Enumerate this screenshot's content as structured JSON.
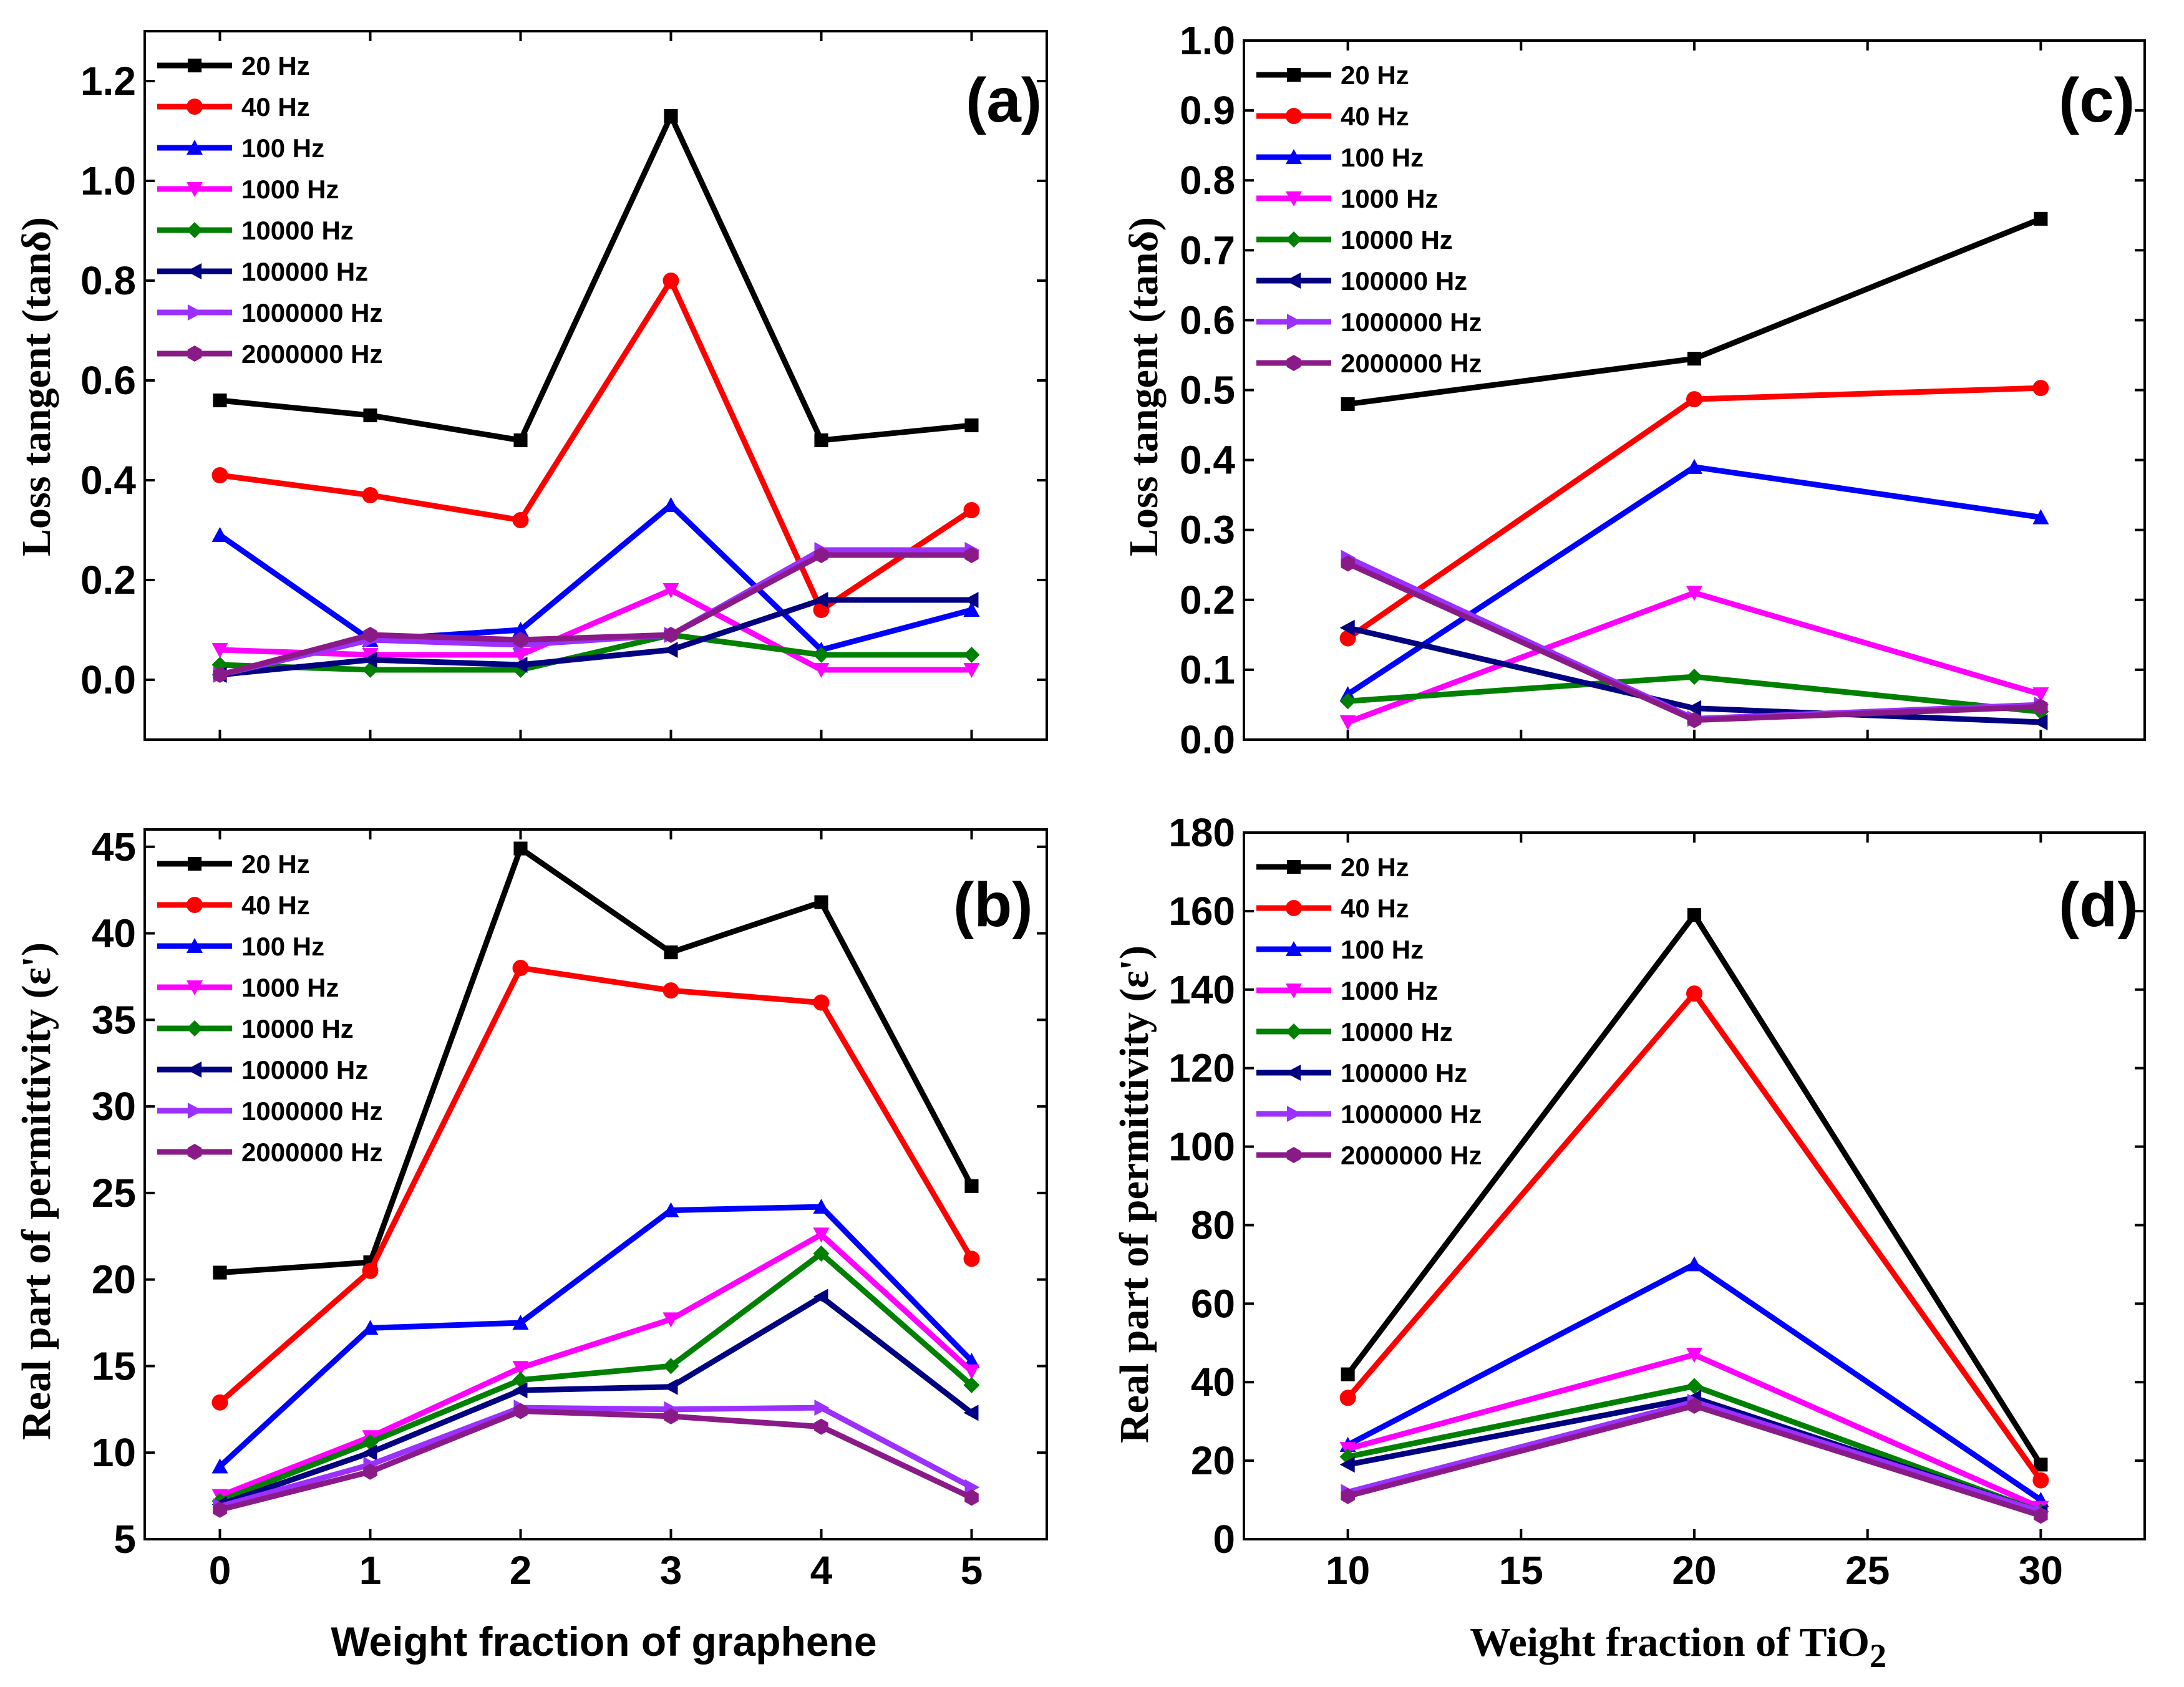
{
  "chart_data": [
    {
      "id": "a",
      "type": "line",
      "panel_label": "(a)",
      "xlabel": "",
      "ylabel": "Loss tangent (tanδ)",
      "xlim": [
        -0.5,
        5.5
      ],
      "ylim": [
        -0.12,
        1.3
      ],
      "x_ticks": [
        0,
        1,
        2,
        3,
        4,
        5
      ],
      "y_ticks": [
        0.0,
        0.2,
        0.4,
        0.6,
        0.8,
        1.0,
        1.2
      ],
      "y_tick_labels": [
        "0.0",
        "0.2",
        "0.4",
        "0.6",
        "0.8",
        "1.0",
        "1.2"
      ],
      "x_tick_labels": [],
      "legend_position": "top-left",
      "x": [
        0,
        1,
        2,
        3,
        4,
        5
      ],
      "series": [
        {
          "name": "20 Hz",
          "color": "#000000",
          "marker": "square",
          "values": [
            0.56,
            0.53,
            0.48,
            1.13,
            0.48,
            0.51
          ]
        },
        {
          "name": "40 Hz",
          "color": "#ff0000",
          "marker": "circle",
          "values": [
            0.41,
            0.37,
            0.32,
            0.8,
            0.14,
            0.34
          ]
        },
        {
          "name": "100 Hz",
          "color": "#0000ff",
          "marker": "triangle-up",
          "values": [
            0.29,
            0.08,
            0.1,
            0.35,
            0.06,
            0.14
          ]
        },
        {
          "name": "1000 Hz",
          "color": "#ff00ff",
          "marker": "triangle-down",
          "values": [
            0.06,
            0.05,
            0.05,
            0.18,
            0.02,
            0.02
          ]
        },
        {
          "name": "10000 Hz",
          "color": "#008000",
          "marker": "diamond",
          "values": [
            0.03,
            0.02,
            0.02,
            0.09,
            0.05,
            0.05
          ]
        },
        {
          "name": "100000 Hz",
          "color": "#000080",
          "marker": "triangle-left",
          "values": [
            0.01,
            0.04,
            0.03,
            0.06,
            0.16,
            0.16
          ]
        },
        {
          "name": "1000000 Hz",
          "color": "#9b30ff",
          "marker": "triangle-right",
          "values": [
            0.01,
            0.08,
            0.07,
            0.09,
            0.26,
            0.26
          ]
        },
        {
          "name": "2000000 Hz",
          "color": "#8b1a89",
          "marker": "hexagon",
          "values": [
            0.01,
            0.09,
            0.08,
            0.09,
            0.25,
            0.25
          ]
        }
      ]
    },
    {
      "id": "c",
      "type": "line",
      "panel_label": "(c)",
      "xlabel": "",
      "ylabel": "Loss tangent (tanδ)",
      "xlim": [
        7,
        33
      ],
      "ylim": [
        0,
        1.0
      ],
      "x_ticks": [
        10,
        15,
        20,
        25,
        30
      ],
      "y_ticks": [
        0.0,
        0.1,
        0.2,
        0.3,
        0.4,
        0.5,
        0.6,
        0.7,
        0.8,
        0.9,
        1.0
      ],
      "y_tick_labels": [
        "0.0",
        "0.1",
        "0.2",
        "0.3",
        "0.4",
        "0.5",
        "0.6",
        "0.7",
        "0.8",
        "0.9",
        "1.0"
      ],
      "x_tick_labels": [],
      "legend_position": "top-left",
      "x": [
        10,
        20,
        30
      ],
      "series": [
        {
          "name": "20 Hz",
          "color": "#000000",
          "marker": "square",
          "values": [
            0.48,
            0.545,
            0.745
          ]
        },
        {
          "name": "40 Hz",
          "color": "#ff0000",
          "marker": "circle",
          "values": [
            0.145,
            0.487,
            0.503
          ]
        },
        {
          "name": "100 Hz",
          "color": "#0000ff",
          "marker": "triangle-up",
          "values": [
            0.065,
            0.39,
            0.318
          ]
        },
        {
          "name": "1000 Hz",
          "color": "#ff00ff",
          "marker": "triangle-down",
          "values": [
            0.025,
            0.21,
            0.065
          ]
        },
        {
          "name": "10000 Hz",
          "color": "#008000",
          "marker": "diamond",
          "values": [
            0.055,
            0.09,
            0.04
          ]
        },
        {
          "name": "100000 Hz",
          "color": "#000080",
          "marker": "triangle-left",
          "values": [
            0.16,
            0.045,
            0.025
          ]
        },
        {
          "name": "1000000 Hz",
          "color": "#9b30ff",
          "marker": "triangle-right",
          "values": [
            0.26,
            0.03,
            0.05
          ]
        },
        {
          "name": "2000000 Hz",
          "color": "#8b1a89",
          "marker": "hexagon",
          "values": [
            0.252,
            0.028,
            0.047
          ]
        }
      ]
    },
    {
      "id": "b",
      "type": "line",
      "panel_label": "(b)",
      "xlabel": "Weight fraction of graphene",
      "ylabel": "Real part of permittivity (ε')",
      "xlim": [
        -0.5,
        5.5
      ],
      "ylim": [
        5,
        46
      ],
      "x_ticks": [
        0,
        1,
        2,
        3,
        4,
        5
      ],
      "y_ticks": [
        5,
        10,
        15,
        20,
        25,
        30,
        35,
        40,
        45
      ],
      "y_tick_labels": [
        "5",
        "10",
        "15",
        "20",
        "25",
        "30",
        "35",
        "40",
        "45"
      ],
      "x_tick_labels": [
        "0",
        "1",
        "2",
        "3",
        "4",
        "5"
      ],
      "legend_position": "top-left",
      "x": [
        0,
        1,
        2,
        3,
        4,
        5
      ],
      "series": [
        {
          "name": "20 Hz",
          "color": "#000000",
          "marker": "square",
          "values": [
            20.4,
            21.0,
            44.9,
            38.9,
            41.8,
            25.4
          ]
        },
        {
          "name": "40 Hz",
          "color": "#ff0000",
          "marker": "circle",
          "values": [
            12.9,
            20.5,
            38.0,
            36.7,
            36.0,
            21.2
          ]
        },
        {
          "name": "100 Hz",
          "color": "#0000ff",
          "marker": "triangle-up",
          "values": [
            9.2,
            17.2,
            17.5,
            24.0,
            24.2,
            15.3
          ]
        },
        {
          "name": "1000 Hz",
          "color": "#ff00ff",
          "marker": "triangle-down",
          "values": [
            7.5,
            10.9,
            14.9,
            17.7,
            22.6,
            14.7
          ]
        },
        {
          "name": "10000 Hz",
          "color": "#008000",
          "marker": "diamond",
          "values": [
            7.2,
            10.6,
            14.2,
            15.0,
            21.5,
            13.9
          ]
        },
        {
          "name": "100000 Hz",
          "color": "#000080",
          "marker": "triangle-left",
          "values": [
            7.0,
            10.0,
            13.6,
            13.8,
            19.0,
            12.3
          ]
        },
        {
          "name": "1000000 Hz",
          "color": "#9b30ff",
          "marker": "triangle-right",
          "values": [
            6.9,
            9.3,
            12.6,
            12.5,
            12.6,
            8.0
          ]
        },
        {
          "name": "2000000 Hz",
          "color": "#8b1a89",
          "marker": "hexagon",
          "values": [
            6.7,
            8.9,
            12.4,
            12.1,
            11.5,
            7.4
          ]
        }
      ]
    },
    {
      "id": "d",
      "type": "line",
      "panel_label": "(d)",
      "xlabel": "Weight fraction of TiO2",
      "xlabel_main": "Weight fraction of TiO",
      "xlabel_subscript": "2",
      "ylabel": "Real part of permittivity (ε')",
      "xlim": [
        7,
        33
      ],
      "ylim": [
        0,
        180
      ],
      "x_ticks": [
        10,
        15,
        20,
        25,
        30
      ],
      "y_ticks": [
        0,
        20,
        40,
        60,
        80,
        100,
        120,
        140,
        160,
        180
      ],
      "y_tick_labels": [
        "0",
        "20",
        "40",
        "60",
        "80",
        "100",
        "120",
        "140",
        "160",
        "180"
      ],
      "x_tick_labels": [
        "10",
        "15",
        "20",
        "25",
        "30"
      ],
      "legend_position": "top-left",
      "x": [
        10,
        20,
        30
      ],
      "series": [
        {
          "name": "20 Hz",
          "color": "#000000",
          "marker": "square",
          "values": [
            42,
            159,
            19
          ]
        },
        {
          "name": "40 Hz",
          "color": "#ff0000",
          "marker": "circle",
          "values": [
            36,
            139,
            15
          ]
        },
        {
          "name": "100 Hz",
          "color": "#0000ff",
          "marker": "triangle-up",
          "values": [
            24,
            70,
            10
          ]
        },
        {
          "name": "1000 Hz",
          "color": "#ff00ff",
          "marker": "triangle-down",
          "values": [
            23,
            47,
            8
          ]
        },
        {
          "name": "10000 Hz",
          "color": "#008000",
          "marker": "diamond",
          "values": [
            21,
            39,
            7
          ]
        },
        {
          "name": "100000 Hz",
          "color": "#000080",
          "marker": "triangle-left",
          "values": [
            19,
            36,
            7
          ]
        },
        {
          "name": "1000000 Hz",
          "color": "#9b30ff",
          "marker": "triangle-right",
          "values": [
            12,
            35,
            7
          ]
        },
        {
          "name": "2000000 Hz",
          "color": "#8b1a89",
          "marker": "hexagon",
          "values": [
            11,
            34,
            6
          ]
        }
      ]
    }
  ]
}
